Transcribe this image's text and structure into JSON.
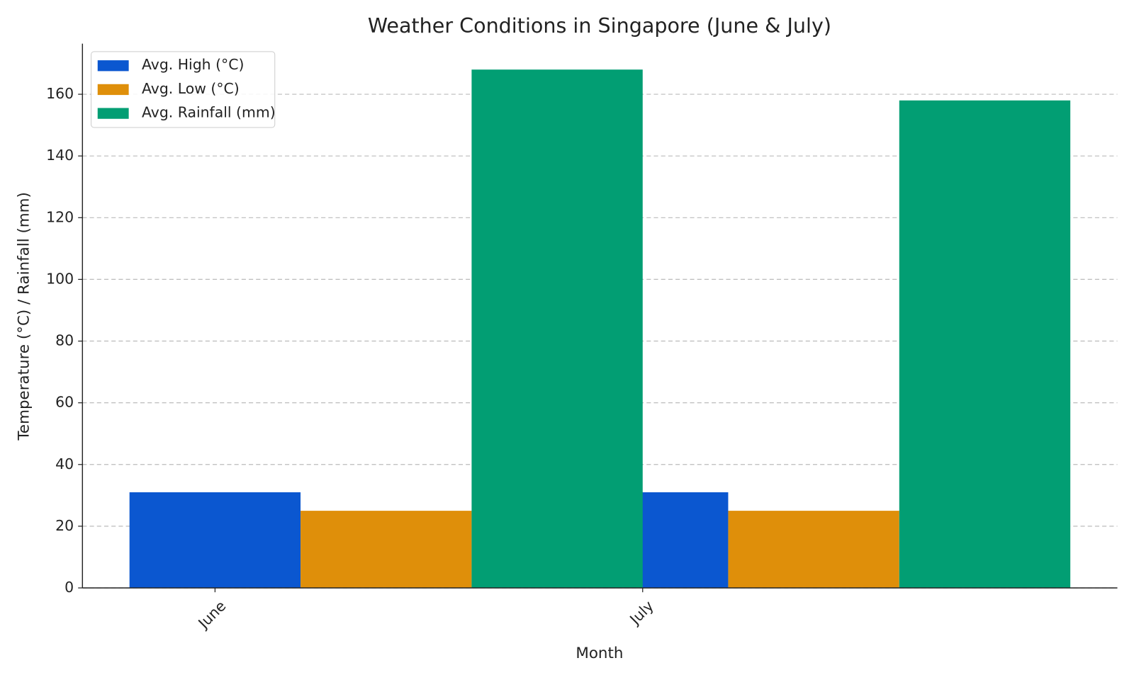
{
  "chart_data": {
    "type": "bar",
    "title": "Weather Conditions in Singapore (June & July)",
    "x_label": "Month",
    "y_label": "Temperature (°C) / Rainfall (mm)",
    "categories": [
      "June",
      "July"
    ],
    "series": [
      {
        "name": "Avg. High (°C)",
        "color": "#0b57d0",
        "values": [
          31,
          31
        ]
      },
      {
        "name": "Avg. Low (°C)",
        "color": "#df8f0a",
        "values": [
          25,
          25
        ]
      },
      {
        "name": "Avg. Rainfall (mm)",
        "color": "#029e73",
        "values": [
          168,
          158
        ]
      }
    ],
    "ylim": [
      0,
      176.4
    ],
    "yticks": [
      0,
      20,
      40,
      60,
      80,
      100,
      120,
      140,
      160
    ],
    "grid": true,
    "legend": "upper left"
  }
}
